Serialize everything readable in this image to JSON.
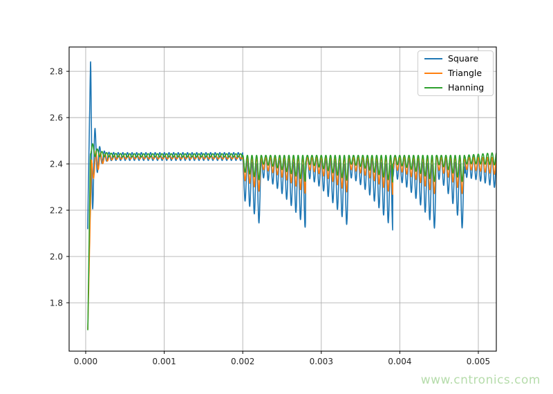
{
  "legend": {
    "entries": [
      {
        "label": "Square",
        "color": "#1f77b4"
      },
      {
        "label": "Triangle",
        "color": "#ff7f0e"
      },
      {
        "label": "Hanning",
        "color": "#2ca02c"
      }
    ]
  },
  "watermark": {
    "text": "www.cntronics.com",
    "color": "#b6dcab"
  },
  "chart_data": {
    "type": "line",
    "title": "",
    "xlabel": "",
    "ylabel": "",
    "xlim": [
      -0.000211,
      0.005229
    ],
    "ylim": [
      1.591,
      2.905
    ],
    "grid": true,
    "grid_color": "#b0b0b0",
    "axis_color": "#000000",
    "tick_label_color": "#262626",
    "tick_font_size": 12,
    "legend_position": "upper right",
    "xticks": {
      "values": [
        0,
        0.001,
        0.002,
        0.003,
        0.004,
        0.005
      ],
      "labels": [
        "0.000",
        "0.001",
        "0.002",
        "0.003",
        "0.004",
        "0.005"
      ]
    },
    "yticks": {
      "values": [
        1.8,
        2.0,
        2.2,
        2.4,
        2.6,
        2.8
      ],
      "labels": [
        "1.8",
        "2.0",
        "2.2",
        "2.4",
        "2.6",
        "2.8"
      ]
    },
    "key_points": {
      "square": {
        "initial_low": 2.12,
        "overshoot_peak": 2.84,
        "ringing_peaks": [
          2.6,
          2.53,
          2.5,
          2.48
        ],
        "ringing_lows": [
          2.28,
          2.33,
          2.35
        ],
        "steady": 2.43,
        "deepest_burst_dip": 2.13
      },
      "triangle": {
        "initial_low": 1.67,
        "first_dip": 2.33,
        "steady": 2.43,
        "burst_dip_min": 2.27
      },
      "hanning": {
        "initial_low": 1.66,
        "overshoot_peak": 2.47,
        "steady": 2.435,
        "burst_dip_min": 2.32
      },
      "transition_time": 0.002,
      "burst_period_s": 0.00055,
      "oscillation_period_s": 5.88e-05
    },
    "shared_model": {
      "t_start": 2.5e-05,
      "t_end": 0.00523,
      "dt": 2e-06,
      "osc_period": 5.88e-05,
      "transition": 0.002,
      "resets": [
        0.002,
        0.002235,
        0.0028,
        0.00335,
        0.00391,
        0.00446,
        0.00483,
        0.0053
      ],
      "d0": [
        0.17,
        0.09,
        0.09,
        0.09,
        0.09,
        0.09,
        0.09
      ],
      "d1": [
        0.27,
        0.27,
        0.27,
        0.28,
        0.28,
        0.3,
        0.14
      ],
      "env_shape": 1.5,
      "spike_power": 1.15,
      "tail_start": 0.00483
    },
    "series": [
      {
        "name": "Square",
        "color": "#1f77b4",
        "model": {
          "rise": {
            "t0": 2.5e-05,
            "v0": 2.12,
            "t1": 6.16e-05,
            "v1": 2.849
          },
          "approach": {
            "base": 2.432,
            "K": 0,
            "tau": 0.0001
          },
          "ripple": {
            "a0": 0.41,
            "tau": 4.24e-05,
            "tp": 6.16e-05,
            "floor": 0.017
          },
          "post": {
            "factor": 1.0,
            "top_sag": 0.22,
            "tail_rise": 0
          }
        }
      },
      {
        "name": "Triangle",
        "color": "#ff7f0e",
        "model": {
          "rise": {
            "t0": 2.6e-05,
            "v0": 1.67,
            "t1": 7e-05,
            "v1": 2.36
          },
          "approach": {
            "base": 2.428,
            "K": 0.065,
            "tau": 6e-05
          },
          "ripple": {
            "a0": 0.045,
            "tau": 8e-05,
            "tp": 0.00013,
            "floor": 0.0065
          },
          "post": {
            "factor": 0.58,
            "top_sag": 0,
            "tail_rise": 0
          }
        }
      },
      {
        "name": "Hanning",
        "color": "#2ca02c",
        "model": {
          "rise": {
            "t0": 2.6e-05,
            "v0": 1.66,
            "t1": 6e-05,
            "v1": 2.455
          },
          "approach": {
            "base": 2.437,
            "K": -0.033,
            "tau": 8e-05
          },
          "ripple": {
            "a0": 0.02,
            "tau": 8e-05,
            "tp": 9e-05,
            "floor": 0.007
          },
          "post": {
            "factor": 0.42,
            "top_sag": 0,
            "tail_rise": 0.012
          }
        }
      }
    ]
  }
}
